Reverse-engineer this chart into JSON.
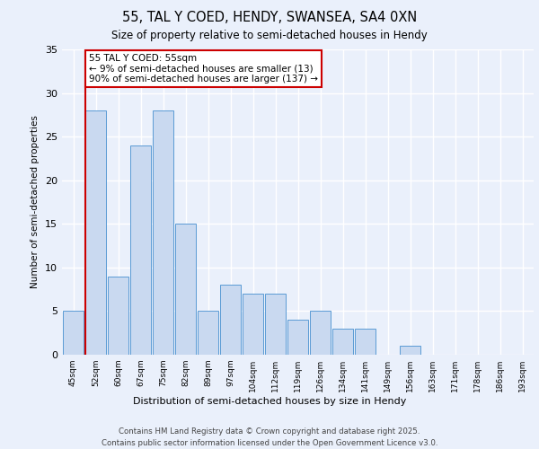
{
  "title1": "55, TAL Y COED, HENDY, SWANSEA, SA4 0XN",
  "title2": "Size of property relative to semi-detached houses in Hendy",
  "xlabel": "Distribution of semi-detached houses by size in Hendy",
  "ylabel": "Number of semi-detached properties",
  "categories": [
    "45sqm",
    "52sqm",
    "60sqm",
    "67sqm",
    "75sqm",
    "82sqm",
    "89sqm",
    "97sqm",
    "104sqm",
    "112sqm",
    "119sqm",
    "126sqm",
    "134sqm",
    "141sqm",
    "149sqm",
    "156sqm",
    "163sqm",
    "171sqm",
    "178sqm",
    "186sqm",
    "193sqm"
  ],
  "values": [
    5,
    28,
    9,
    24,
    28,
    15,
    5,
    8,
    7,
    7,
    4,
    5,
    3,
    3,
    0,
    1,
    0,
    0,
    0,
    0,
    0
  ],
  "bar_color": "#c9d9f0",
  "bar_edge_color": "#5b9bd5",
  "annotation_text": "55 TAL Y COED: 55sqm\n← 9% of semi-detached houses are smaller (13)\n90% of semi-detached houses are larger (137) →",
  "annotation_box_color": "#ffffff",
  "annotation_box_edge": "#cc0000",
  "vline_color": "#cc0000",
  "vline_x": 0.55,
  "ylim": [
    0,
    35
  ],
  "yticks": [
    0,
    5,
    10,
    15,
    20,
    25,
    30,
    35
  ],
  "footer1": "Contains HM Land Registry data © Crown copyright and database right 2025.",
  "footer2": "Contains public sector information licensed under the Open Government Licence v3.0.",
  "bg_color": "#eaf0fb",
  "plot_bg": "#eaf0fb",
  "grid_color": "#ffffff"
}
